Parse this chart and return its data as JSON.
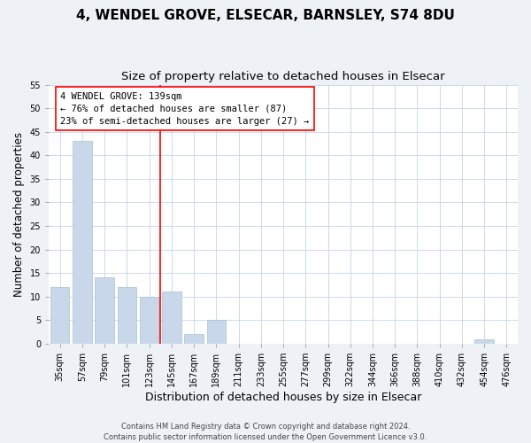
{
  "title": "4, WENDEL GROVE, ELSECAR, BARNSLEY, S74 8DU",
  "subtitle": "Size of property relative to detached houses in Elsecar",
  "xlabel": "Distribution of detached houses by size in Elsecar",
  "ylabel": "Number of detached properties",
  "bar_color": "#c8d8ea",
  "bar_edge_color": "#a8c0d4",
  "categories": [
    "35sqm",
    "57sqm",
    "79sqm",
    "101sqm",
    "123sqm",
    "145sqm",
    "167sqm",
    "189sqm",
    "211sqm",
    "233sqm",
    "255sqm",
    "277sqm",
    "299sqm",
    "322sqm",
    "344sqm",
    "366sqm",
    "388sqm",
    "410sqm",
    "432sqm",
    "454sqm",
    "476sqm"
  ],
  "values": [
    12,
    43,
    14,
    12,
    10,
    11,
    2,
    5,
    0,
    0,
    0,
    0,
    0,
    0,
    0,
    0,
    0,
    0,
    0,
    1,
    0
  ],
  "ylim": [
    0,
    55
  ],
  "yticks": [
    0,
    5,
    10,
    15,
    20,
    25,
    30,
    35,
    40,
    45,
    50,
    55
  ],
  "vline_x": 4.5,
  "annotation_line1": "4 WENDEL GROVE: 139sqm",
  "annotation_line2": "← 76% of detached houses are smaller (87)",
  "annotation_line3": "23% of semi-detached houses are larger (27) →",
  "footer_line1": "Contains HM Land Registry data © Crown copyright and database right 2024.",
  "footer_line2": "Contains public sector information licensed under the Open Government Licence v3.0.",
  "background_color": "#eef2f7",
  "plot_bg_color": "#ffffff",
  "grid_color": "#c5d5e5",
  "title_fontsize": 11,
  "subtitle_fontsize": 9.5,
  "tick_fontsize": 7,
  "ylabel_fontsize": 8.5,
  "xlabel_fontsize": 9,
  "footer_fontsize": 6,
  "annot_fontsize": 7.5
}
